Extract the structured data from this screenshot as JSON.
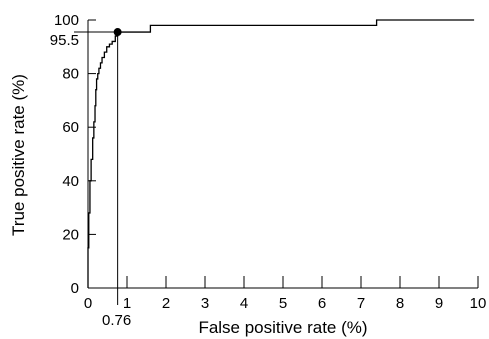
{
  "chart_data": {
    "type": "line",
    "title": "",
    "xlabel": "False positive rate (%)",
    "ylabel": "True positive rate (%)",
    "xlim": [
      0,
      10
    ],
    "ylim": [
      0,
      100
    ],
    "x_ticks": [
      0,
      1,
      2,
      3,
      4,
      5,
      6,
      7,
      8,
      9,
      10
    ],
    "y_ticks": [
      0,
      20,
      40,
      60,
      80,
      100
    ],
    "grid": false,
    "series": [
      {
        "x": [
          0,
          0,
          0.02,
          0.02,
          0.05,
          0.05,
          0.08,
          0.08,
          0.12,
          0.12,
          0.15,
          0.15,
          0.18,
          0.18,
          0.2,
          0.2,
          0.22,
          0.22,
          0.25,
          0.25,
          0.28,
          0.28,
          0.32,
          0.32,
          0.36,
          0.36,
          0.42,
          0.42,
          0.48,
          0.48,
          0.55,
          0.55,
          0.62,
          0.62,
          0.7,
          0.7,
          0.76,
          0.76,
          1.6,
          1.6,
          7.4,
          7.4,
          9.9
        ],
        "y": [
          0,
          15,
          15,
          28,
          28,
          40,
          40,
          48,
          48,
          56,
          56,
          62,
          62,
          68,
          68,
          74,
          74,
          78,
          78,
          80,
          80,
          82,
          82,
          84,
          84,
          86,
          86,
          88,
          88,
          90,
          90,
          91,
          91,
          92,
          92,
          94,
          94,
          95.5,
          95.5,
          98,
          98,
          100,
          100
        ]
      }
    ],
    "annotations": {
      "operating_point": {
        "x": 0.76,
        "y": 95.5
      },
      "x_marker_label": "0.76",
      "y_marker_label": "95.5"
    }
  }
}
